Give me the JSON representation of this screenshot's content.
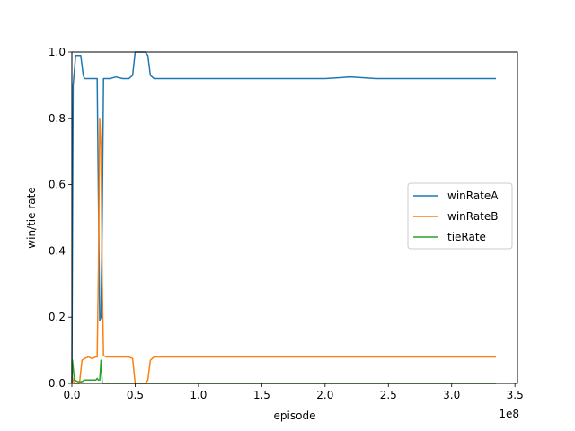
{
  "chart_data": {
    "type": "line",
    "xlabel": "episode",
    "ylabel": "win/tie rate",
    "x_scale_label": "1e8",
    "xlim": [
      0,
      3.52
    ],
    "ylim": [
      0,
      1.0
    ],
    "x_ticks": [
      0.0,
      0.5,
      1.0,
      1.5,
      2.0,
      2.5,
      3.0,
      3.5
    ],
    "x_tick_labels": [
      "0.0",
      "0.5",
      "1.0",
      "1.5",
      "2.0",
      "2.5",
      "3.0",
      "3.5"
    ],
    "y_ticks": [
      0.0,
      0.2,
      0.4,
      0.6,
      0.8,
      1.0
    ],
    "y_tick_labels": [
      "0.0",
      "0.2",
      "0.4",
      "0.6",
      "0.8",
      "1.0"
    ],
    "grid": false,
    "legend": "center-right",
    "series": [
      {
        "name": "winRateA",
        "color": "#1f77b4",
        "x": [
          0.0,
          0.01,
          0.03,
          0.05,
          0.07,
          0.09,
          0.1,
          0.13,
          0.16,
          0.19,
          0.2,
          0.21,
          0.22,
          0.23,
          0.24,
          0.25,
          0.27,
          0.3,
          0.35,
          0.4,
          0.45,
          0.48,
          0.5,
          0.55,
          0.58,
          0.6,
          0.62,
          0.65,
          0.7,
          0.8,
          0.9,
          1.0,
          1.2,
          1.4,
          1.6,
          1.8,
          2.0,
          2.2,
          2.4,
          2.6,
          2.8,
          3.0,
          3.2,
          3.35
        ],
        "y": [
          0.0,
          0.9,
          0.99,
          0.99,
          0.99,
          0.93,
          0.92,
          0.92,
          0.92,
          0.92,
          0.92,
          0.55,
          0.19,
          0.2,
          0.5,
          0.92,
          0.92,
          0.92,
          0.925,
          0.92,
          0.92,
          0.93,
          1.0,
          1.0,
          1.0,
          0.99,
          0.93,
          0.92,
          0.92,
          0.92,
          0.92,
          0.92,
          0.92,
          0.92,
          0.92,
          0.92,
          0.92,
          0.925,
          0.92,
          0.92,
          0.92,
          0.92,
          0.92,
          0.92
        ]
      },
      {
        "name": "winRateB",
        "color": "#ff7f0e",
        "x": [
          0.0,
          0.02,
          0.04,
          0.06,
          0.08,
          0.1,
          0.13,
          0.16,
          0.19,
          0.2,
          0.21,
          0.22,
          0.23,
          0.24,
          0.25,
          0.27,
          0.3,
          0.35,
          0.4,
          0.45,
          0.48,
          0.5,
          0.55,
          0.58,
          0.6,
          0.62,
          0.65,
          0.7,
          0.8,
          0.9,
          1.0,
          1.2,
          1.4,
          1.6,
          1.8,
          2.0,
          2.2,
          2.4,
          2.6,
          2.8,
          3.0,
          3.2,
          3.35
        ],
        "y": [
          0.02,
          0.0,
          0.0,
          0.0,
          0.07,
          0.075,
          0.08,
          0.075,
          0.08,
          0.08,
          0.35,
          0.8,
          0.72,
          0.3,
          0.085,
          0.08,
          0.08,
          0.08,
          0.08,
          0.08,
          0.075,
          0.0,
          0.0,
          0.0,
          0.01,
          0.07,
          0.08,
          0.08,
          0.08,
          0.08,
          0.08,
          0.08,
          0.08,
          0.08,
          0.08,
          0.08,
          0.08,
          0.08,
          0.08,
          0.08,
          0.08,
          0.08,
          0.08
        ]
      },
      {
        "name": "tieRate",
        "color": "#2ca02c",
        "x": [
          0.0,
          0.005,
          0.02,
          0.05,
          0.08,
          0.1,
          0.13,
          0.16,
          0.19,
          0.2,
          0.21,
          0.22,
          0.23,
          0.24,
          0.25,
          0.3,
          0.5,
          1.0,
          1.5,
          2.0,
          2.5,
          3.0,
          3.35
        ],
        "y": [
          0.0,
          0.07,
          0.01,
          0.005,
          0.005,
          0.01,
          0.01,
          0.01,
          0.01,
          0.015,
          0.01,
          0.01,
          0.07,
          0.0,
          0.0,
          0.0,
          0.0,
          0.0,
          0.0,
          0.0,
          0.0,
          0.0,
          0.0
        ]
      }
    ]
  }
}
